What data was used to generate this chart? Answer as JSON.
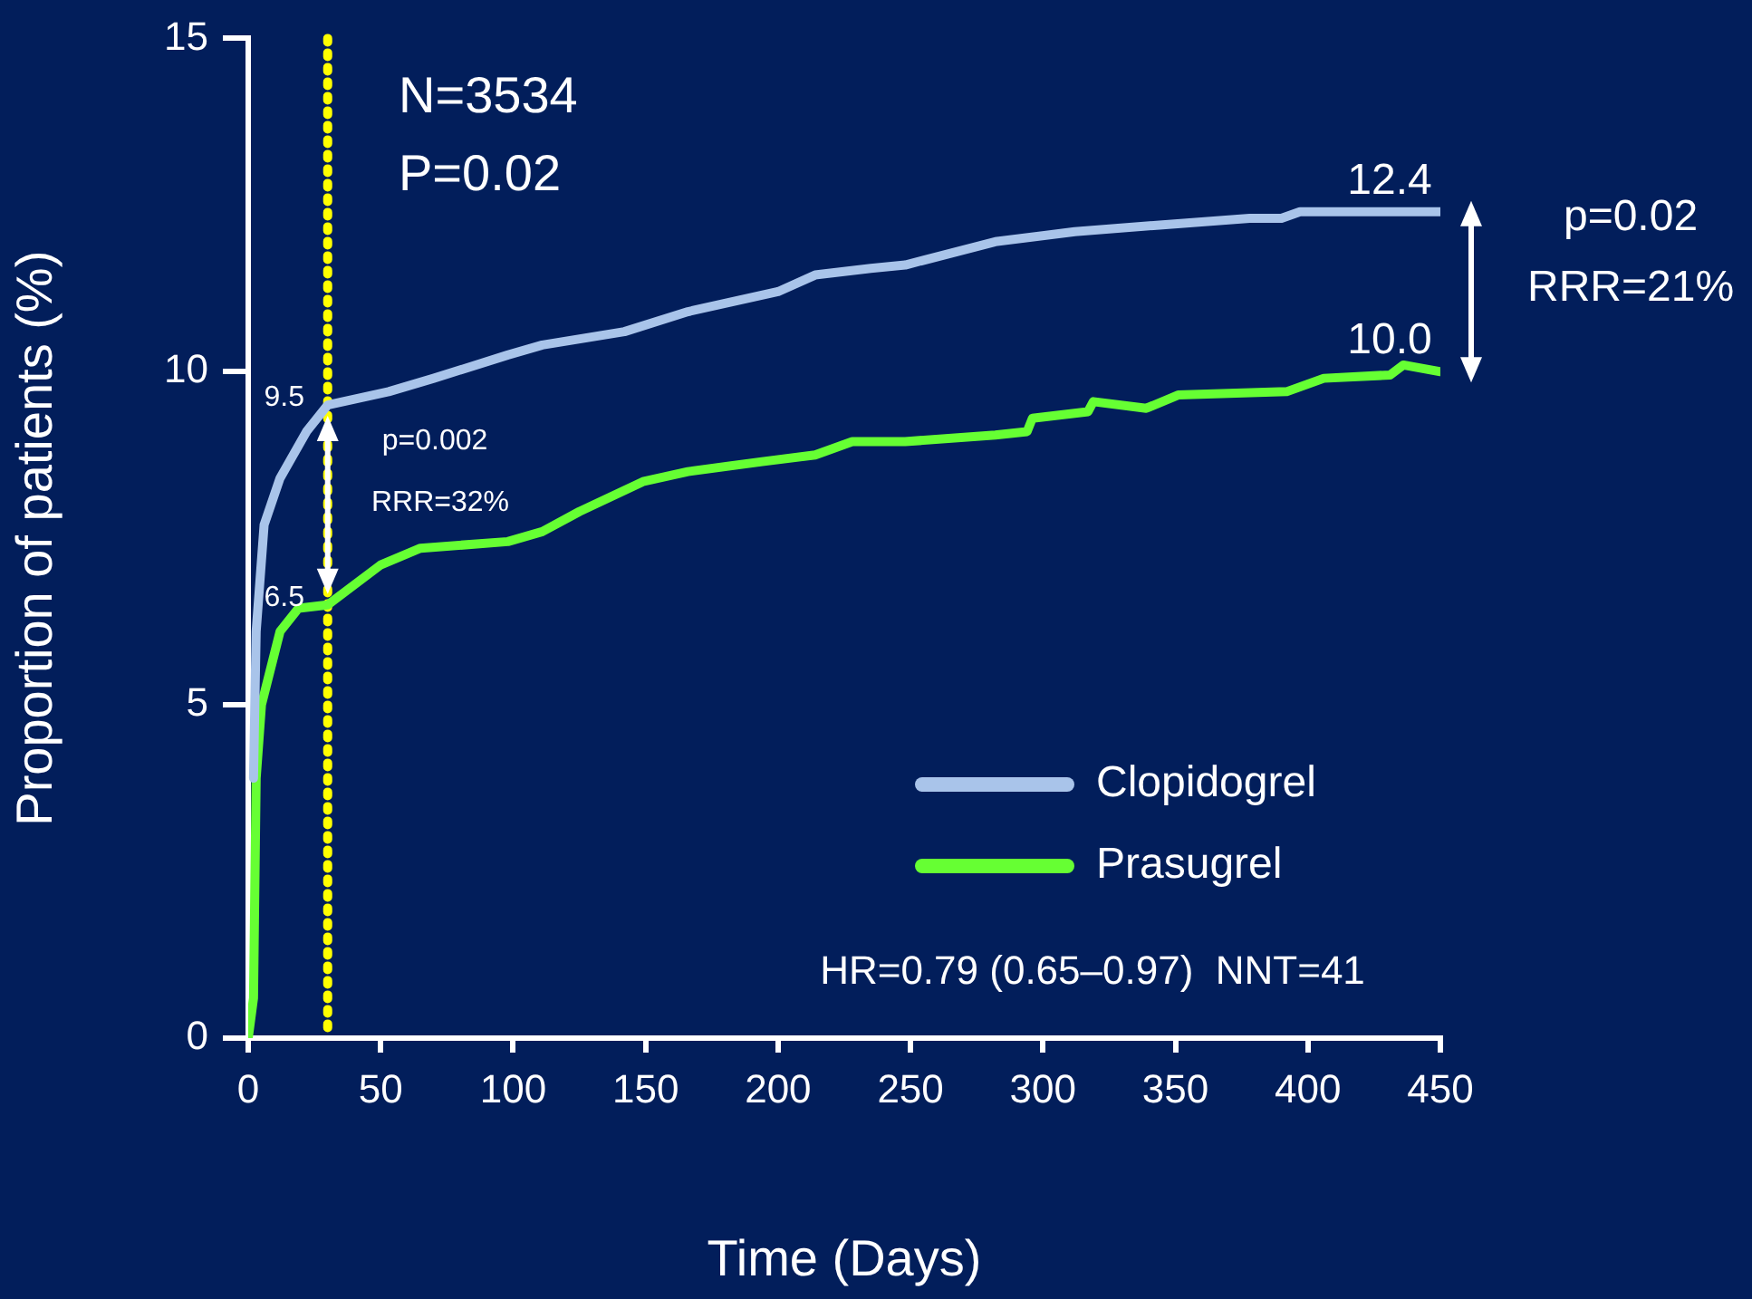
{
  "chart_data": {
    "type": "line",
    "xlabel": "Time (Days)",
    "ylabel": "Proportion of patients (%)",
    "xlim": [
      0,
      450
    ],
    "xticks": [
      0,
      50,
      100,
      150,
      200,
      250,
      300,
      350,
      400,
      450
    ],
    "ylim": [
      0,
      15
    ],
    "yticks": [
      0,
      5,
      10,
      15
    ],
    "grid": false,
    "legend": "bottom right",
    "marker": "none",
    "line_style": "solid",
    "series": [
      {
        "name": "Clopidogrel",
        "color": "#a9c4ea",
        "x": [
          2,
          3,
          6,
          12,
          22,
          30,
          53,
          70,
          98,
          111,
          142,
          166,
          200,
          214,
          235,
          248,
          282,
          312,
          344,
          378,
          390,
          397,
          420,
          450
        ],
        "values": [
          3.9,
          6.1,
          7.7,
          8.4,
          9.1,
          9.5,
          9.7,
          9.9,
          10.25,
          10.4,
          10.6,
          10.9,
          11.2,
          11.45,
          11.55,
          11.6,
          11.95,
          12.1,
          12.2,
          12.3,
          12.3,
          12.4,
          12.4,
          12.4
        ],
        "value_labels": [
          null,
          null,
          null,
          null,
          null,
          "9.5",
          null,
          null,
          null,
          null,
          null,
          null,
          null,
          null,
          null,
          null,
          null,
          null,
          null,
          null,
          null,
          null,
          null,
          "12.4"
        ]
      },
      {
        "name": "Prasugrel",
        "color": "#66ff33",
        "x": [
          0,
          2,
          3,
          5,
          12,
          19,
          30,
          50,
          65,
          98,
          111,
          125,
          149,
          166,
          194,
          214,
          228,
          248,
          282,
          294,
          296,
          317,
          319,
          339,
          351,
          392,
          406,
          431,
          436,
          450
        ],
        "values": [
          0,
          0.6,
          3.9,
          5.0,
          6.1,
          6.45,
          6.5,
          7.1,
          7.35,
          7.45,
          7.6,
          7.9,
          8.35,
          8.5,
          8.65,
          8.75,
          8.95,
          8.95,
          9.05,
          9.1,
          9.3,
          9.4,
          9.55,
          9.45,
          9.65,
          9.7,
          9.9,
          9.95,
          10.1,
          10.0
        ],
        "value_labels": [
          null,
          null,
          null,
          null,
          null,
          null,
          "6.5",
          null,
          null,
          null,
          null,
          null,
          null,
          null,
          null,
          null,
          null,
          null,
          null,
          null,
          null,
          null,
          null,
          null,
          null,
          null,
          null,
          null,
          null,
          "10.0"
        ]
      }
    ],
    "ref_lines": [
      {
        "axis": "x",
        "value": 30,
        "color": "#ffff00",
        "line_style": "dotted"
      }
    ],
    "annotations": [
      "N=3534",
      "P=0.02",
      "p=0.02",
      "RRR=21%",
      "p=0.002",
      "RRR=32%",
      "HR=0.79 (0.65–0.97)  NNT=41"
    ]
  }
}
